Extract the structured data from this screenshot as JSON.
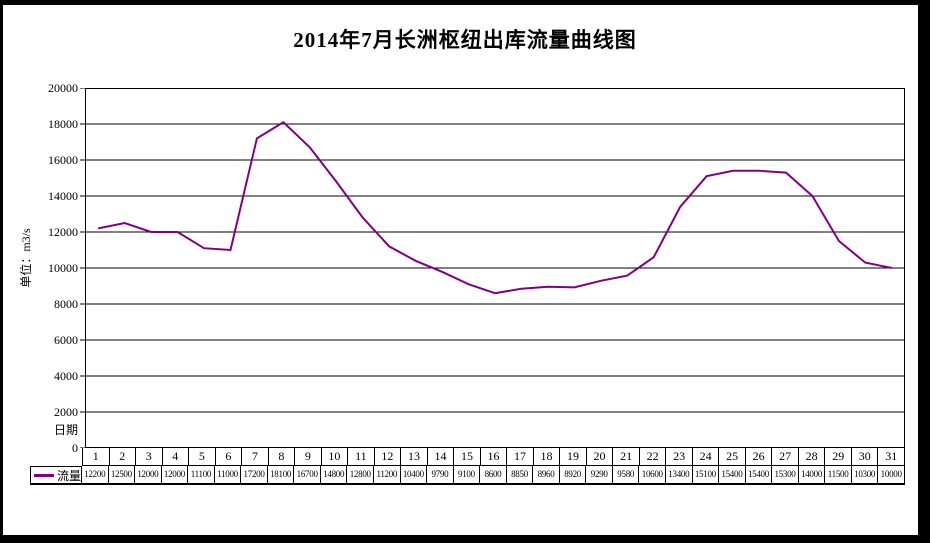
{
  "title": "2014年7月长洲枢纽出库流量曲线图",
  "chart": {
    "y_axis_title": "单位：m3/s",
    "x_axis_label": "日期",
    "legend_label": "流量",
    "line_color": "#800080",
    "grid_color": "#000000",
    "background_color": "#ffffff"
  },
  "chart_data": {
    "type": "line",
    "title": "2014年7月长洲枢纽出库流量曲线图",
    "xlabel": "日期",
    "ylabel": "单位：m3/s",
    "categories": [
      1,
      2,
      3,
      4,
      5,
      6,
      7,
      8,
      9,
      10,
      11,
      12,
      13,
      14,
      15,
      16,
      17,
      18,
      19,
      20,
      21,
      22,
      23,
      24,
      25,
      26,
      27,
      28,
      29,
      30,
      31
    ],
    "series": [
      {
        "name": "流量",
        "color": "#800080",
        "values": [
          12200,
          12500,
          12000,
          12000,
          11100,
          11000,
          17200,
          18100,
          16700,
          14800,
          12800,
          11200,
          10400,
          9790,
          9100,
          8600,
          8850,
          8960,
          8920,
          9290,
          9580,
          10600,
          13400,
          15100,
          15400,
          15400,
          15300,
          14000,
          11500,
          10300,
          10000
        ]
      }
    ],
    "ylim": [
      0,
      20000
    ],
    "y_tick_step": 2000,
    "y_ticks": [
      0,
      2000,
      4000,
      6000,
      8000,
      10000,
      12000,
      14000,
      16000,
      18000,
      20000
    ],
    "grid": "horizontal",
    "legend_position": "bottom-left-table",
    "data_table": true
  }
}
